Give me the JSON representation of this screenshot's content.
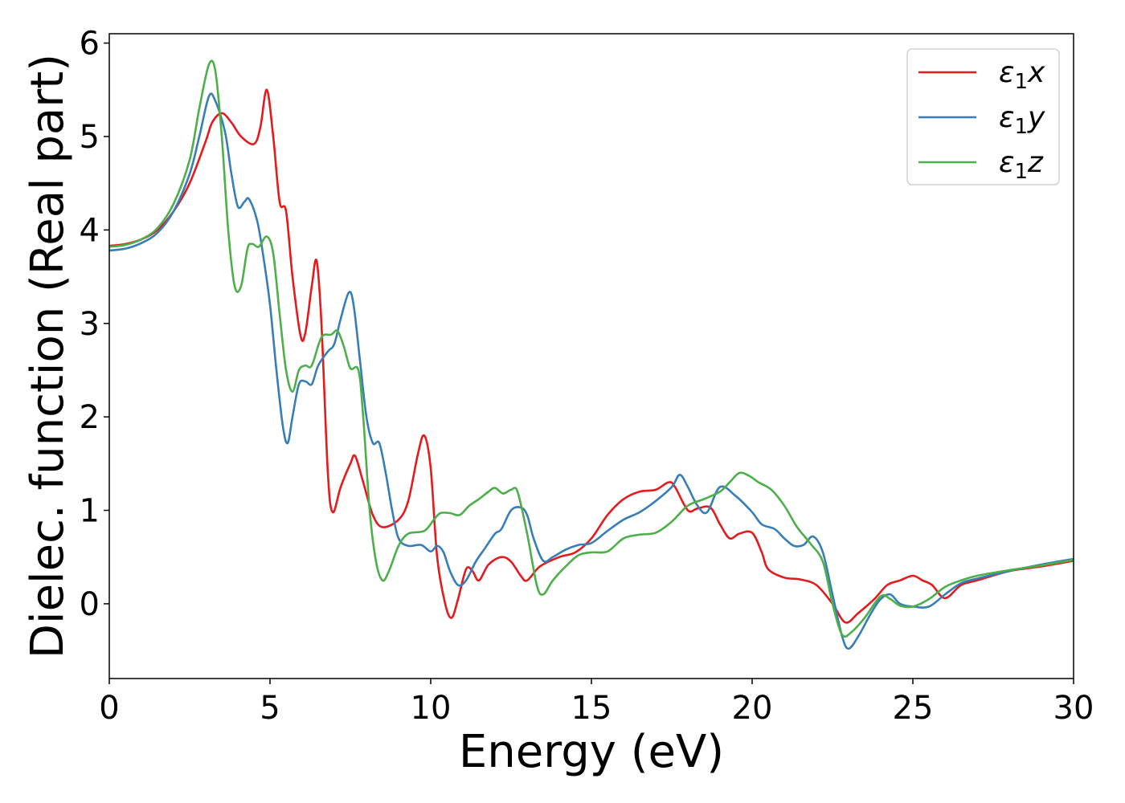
{
  "chart_data": {
    "type": "line",
    "xlabel": "Energy (eV)",
    "ylabel": "Dielec. function (Real part)",
    "xlim": [
      0,
      30
    ],
    "ylim": [
      -0.8,
      6.1
    ],
    "xticks": [
      0,
      5,
      10,
      15,
      20,
      25,
      30
    ],
    "yticks": [
      0,
      1,
      2,
      3,
      4,
      5,
      6
    ],
    "xtick_labels": [
      "0",
      "5",
      "10",
      "15",
      "20",
      "25",
      "30"
    ],
    "ytick_labels": [
      "0",
      "1",
      "2",
      "3",
      "4",
      "5",
      "6"
    ],
    "grid": false,
    "legend_position": "top-right",
    "series": [
      {
        "name": "ε1x",
        "symbol": "ε",
        "subscript": "1",
        "suffix": "x",
        "color": "#e41a1c",
        "points": [
          [
            0,
            3.83
          ],
          [
            0.5,
            3.85
          ],
          [
            1,
            3.9
          ],
          [
            1.5,
            4.0
          ],
          [
            2,
            4.2
          ],
          [
            2.5,
            4.5
          ],
          [
            3,
            4.95
          ],
          [
            3.2,
            5.15
          ],
          [
            3.5,
            5.25
          ],
          [
            3.8,
            5.15
          ],
          [
            4.1,
            5.0
          ],
          [
            4.5,
            4.92
          ],
          [
            4.7,
            5.1
          ],
          [
            4.9,
            5.5
          ],
          [
            5.1,
            5.0
          ],
          [
            5.3,
            4.3
          ],
          [
            5.5,
            4.2
          ],
          [
            5.7,
            3.5
          ],
          [
            5.95,
            2.87
          ],
          [
            6.1,
            2.9
          ],
          [
            6.3,
            3.4
          ],
          [
            6.45,
            3.67
          ],
          [
            6.6,
            3.0
          ],
          [
            6.8,
            1.4
          ],
          [
            6.95,
            0.98
          ],
          [
            7.2,
            1.25
          ],
          [
            7.5,
            1.5
          ],
          [
            7.65,
            1.58
          ],
          [
            7.9,
            1.3
          ],
          [
            8.2,
            0.95
          ],
          [
            8.5,
            0.82
          ],
          [
            9,
            0.9
          ],
          [
            9.3,
            1.1
          ],
          [
            9.6,
            1.6
          ],
          [
            9.8,
            1.8
          ],
          [
            10,
            1.45
          ],
          [
            10.2,
            0.5
          ],
          [
            10.45,
            0.0
          ],
          [
            10.65,
            -0.15
          ],
          [
            10.85,
            0.05
          ],
          [
            11.1,
            0.37
          ],
          [
            11.3,
            0.35
          ],
          [
            11.5,
            0.25
          ],
          [
            11.8,
            0.42
          ],
          [
            12.2,
            0.5
          ],
          [
            12.5,
            0.45
          ],
          [
            12.8,
            0.3
          ],
          [
            13.0,
            0.25
          ],
          [
            13.4,
            0.4
          ],
          [
            14,
            0.5
          ],
          [
            14.5,
            0.55
          ],
          [
            15,
            0.7
          ],
          [
            15.5,
            0.95
          ],
          [
            16,
            1.12
          ],
          [
            16.5,
            1.2
          ],
          [
            17,
            1.22
          ],
          [
            17.4,
            1.3
          ],
          [
            17.6,
            1.25
          ],
          [
            18,
            1.0
          ],
          [
            18.3,
            1.02
          ],
          [
            18.7,
            1.03
          ],
          [
            19.0,
            0.85
          ],
          [
            19.3,
            0.7
          ],
          [
            19.6,
            0.75
          ],
          [
            20,
            0.76
          ],
          [
            20.3,
            0.55
          ],
          [
            20.5,
            0.37
          ],
          [
            21,
            0.28
          ],
          [
            21.5,
            0.26
          ],
          [
            22,
            0.2
          ],
          [
            22.5,
            0.0
          ],
          [
            22.9,
            -0.2
          ],
          [
            23.3,
            -0.1
          ],
          [
            23.8,
            0.05
          ],
          [
            24.2,
            0.2
          ],
          [
            24.6,
            0.25
          ],
          [
            25,
            0.3
          ],
          [
            25.3,
            0.25
          ],
          [
            25.6,
            0.2
          ],
          [
            26,
            0.06
          ],
          [
            26.5,
            0.2
          ],
          [
            27,
            0.25
          ],
          [
            28,
            0.35
          ],
          [
            29,
            0.4
          ],
          [
            30,
            0.46
          ]
        ]
      },
      {
        "name": "ε1y",
        "symbol": "ε",
        "subscript": "1",
        "suffix": "y",
        "color": "#377eb8",
        "points": [
          [
            0,
            3.78
          ],
          [
            0.5,
            3.8
          ],
          [
            1,
            3.86
          ],
          [
            1.5,
            3.97
          ],
          [
            2,
            4.2
          ],
          [
            2.5,
            4.6
          ],
          [
            2.8,
            5.0
          ],
          [
            3.1,
            5.43
          ],
          [
            3.3,
            5.38
          ],
          [
            3.6,
            5.05
          ],
          [
            3.8,
            4.6
          ],
          [
            4.0,
            4.25
          ],
          [
            4.2,
            4.3
          ],
          [
            4.35,
            4.33
          ],
          [
            4.6,
            4.1
          ],
          [
            4.8,
            3.7
          ],
          [
            5.0,
            3.2
          ],
          [
            5.2,
            2.5
          ],
          [
            5.4,
            1.9
          ],
          [
            5.55,
            1.72
          ],
          [
            5.7,
            2.0
          ],
          [
            5.9,
            2.35
          ],
          [
            6.1,
            2.38
          ],
          [
            6.3,
            2.35
          ],
          [
            6.5,
            2.55
          ],
          [
            6.8,
            2.7
          ],
          [
            7.0,
            2.78
          ],
          [
            7.2,
            3.05
          ],
          [
            7.45,
            3.33
          ],
          [
            7.6,
            3.2
          ],
          [
            7.8,
            2.6
          ],
          [
            8.0,
            2.0
          ],
          [
            8.2,
            1.72
          ],
          [
            8.4,
            1.72
          ],
          [
            8.6,
            1.4
          ],
          [
            8.8,
            1.0
          ],
          [
            9.0,
            0.7
          ],
          [
            9.3,
            0.62
          ],
          [
            9.7,
            0.63
          ],
          [
            10.0,
            0.56
          ],
          [
            10.2,
            0.62
          ],
          [
            10.4,
            0.55
          ],
          [
            10.6,
            0.35
          ],
          [
            10.85,
            0.2
          ],
          [
            11.1,
            0.25
          ],
          [
            11.4,
            0.45
          ],
          [
            11.7,
            0.6
          ],
          [
            12.0,
            0.75
          ],
          [
            12.2,
            0.8
          ],
          [
            12.5,
            1.0
          ],
          [
            12.8,
            1.03
          ],
          [
            13.0,
            0.95
          ],
          [
            13.2,
            0.7
          ],
          [
            13.5,
            0.46
          ],
          [
            13.8,
            0.5
          ],
          [
            14.2,
            0.58
          ],
          [
            14.6,
            0.63
          ],
          [
            15,
            0.65
          ],
          [
            15.5,
            0.78
          ],
          [
            16,
            0.9
          ],
          [
            16.5,
            0.98
          ],
          [
            17,
            1.1
          ],
          [
            17.5,
            1.25
          ],
          [
            17.75,
            1.38
          ],
          [
            18.0,
            1.25
          ],
          [
            18.3,
            1.05
          ],
          [
            18.6,
            0.98
          ],
          [
            19.0,
            1.25
          ],
          [
            19.5,
            1.15
          ],
          [
            20,
            0.98
          ],
          [
            20.3,
            0.85
          ],
          [
            20.7,
            0.8
          ],
          [
            21.0,
            0.7
          ],
          [
            21.3,
            0.62
          ],
          [
            21.6,
            0.63
          ],
          [
            21.9,
            0.72
          ],
          [
            22.2,
            0.55
          ],
          [
            22.5,
            0.1
          ],
          [
            22.8,
            -0.35
          ],
          [
            23.0,
            -0.48
          ],
          [
            23.3,
            -0.35
          ],
          [
            23.7,
            -0.1
          ],
          [
            24.0,
            0.05
          ],
          [
            24.3,
            0.1
          ],
          [
            24.6,
            0.0
          ],
          [
            25,
            -0.03
          ],
          [
            25.5,
            -0.03
          ],
          [
            26,
            0.1
          ],
          [
            26.5,
            0.22
          ],
          [
            27,
            0.27
          ],
          [
            28,
            0.35
          ],
          [
            29,
            0.42
          ],
          [
            30,
            0.48
          ]
        ]
      },
      {
        "name": "ε1z",
        "symbol": "ε",
        "subscript": "1",
        "suffix": "z",
        "color": "#4daf4a",
        "points": [
          [
            0,
            3.82
          ],
          [
            0.5,
            3.84
          ],
          [
            1,
            3.9
          ],
          [
            1.5,
            4.02
          ],
          [
            2,
            4.28
          ],
          [
            2.5,
            4.75
          ],
          [
            2.8,
            5.3
          ],
          [
            3.1,
            5.77
          ],
          [
            3.3,
            5.7
          ],
          [
            3.5,
            5.0
          ],
          [
            3.7,
            4.0
          ],
          [
            3.9,
            3.4
          ],
          [
            4.1,
            3.4
          ],
          [
            4.3,
            3.8
          ],
          [
            4.45,
            3.85
          ],
          [
            4.65,
            3.82
          ],
          [
            4.9,
            3.93
          ],
          [
            5.1,
            3.75
          ],
          [
            5.3,
            3.1
          ],
          [
            5.5,
            2.5
          ],
          [
            5.7,
            2.27
          ],
          [
            5.9,
            2.5
          ],
          [
            6.1,
            2.55
          ],
          [
            6.3,
            2.55
          ],
          [
            6.6,
            2.85
          ],
          [
            6.9,
            2.88
          ],
          [
            7.1,
            2.92
          ],
          [
            7.3,
            2.75
          ],
          [
            7.5,
            2.52
          ],
          [
            7.75,
            2.5
          ],
          [
            7.9,
            2.0
          ],
          [
            8.1,
            1.0
          ],
          [
            8.3,
            0.45
          ],
          [
            8.5,
            0.25
          ],
          [
            8.7,
            0.35
          ],
          [
            9.0,
            0.62
          ],
          [
            9.3,
            0.75
          ],
          [
            9.8,
            0.78
          ],
          [
            10.1,
            0.9
          ],
          [
            10.3,
            0.97
          ],
          [
            10.6,
            0.97
          ],
          [
            10.9,
            0.95
          ],
          [
            11.2,
            1.05
          ],
          [
            11.5,
            1.12
          ],
          [
            11.8,
            1.2
          ],
          [
            12.0,
            1.24
          ],
          [
            12.25,
            1.18
          ],
          [
            12.5,
            1.22
          ],
          [
            12.7,
            1.2
          ],
          [
            13.0,
            0.75
          ],
          [
            13.3,
            0.2
          ],
          [
            13.5,
            0.1
          ],
          [
            13.8,
            0.25
          ],
          [
            14.2,
            0.4
          ],
          [
            14.6,
            0.52
          ],
          [
            15,
            0.55
          ],
          [
            15.5,
            0.56
          ],
          [
            16,
            0.7
          ],
          [
            16.5,
            0.74
          ],
          [
            17,
            0.76
          ],
          [
            17.5,
            0.88
          ],
          [
            18,
            1.05
          ],
          [
            18.5,
            1.12
          ],
          [
            19,
            1.2
          ],
          [
            19.3,
            1.3
          ],
          [
            19.6,
            1.4
          ],
          [
            19.9,
            1.37
          ],
          [
            20.2,
            1.3
          ],
          [
            20.6,
            1.22
          ],
          [
            21,
            1.05
          ],
          [
            21.4,
            0.82
          ],
          [
            21.8,
            0.65
          ],
          [
            22.2,
            0.45
          ],
          [
            22.5,
            0.0
          ],
          [
            22.8,
            -0.33
          ],
          [
            23.1,
            -0.3
          ],
          [
            23.5,
            -0.15
          ],
          [
            24,
            0.08
          ],
          [
            24.3,
            0.05
          ],
          [
            24.6,
            -0.02
          ],
          [
            25,
            -0.03
          ],
          [
            25.5,
            0.05
          ],
          [
            26,
            0.18
          ],
          [
            26.5,
            0.25
          ],
          [
            27,
            0.3
          ],
          [
            28,
            0.36
          ],
          [
            29,
            0.41
          ],
          [
            30,
            0.47
          ]
        ]
      }
    ]
  }
}
